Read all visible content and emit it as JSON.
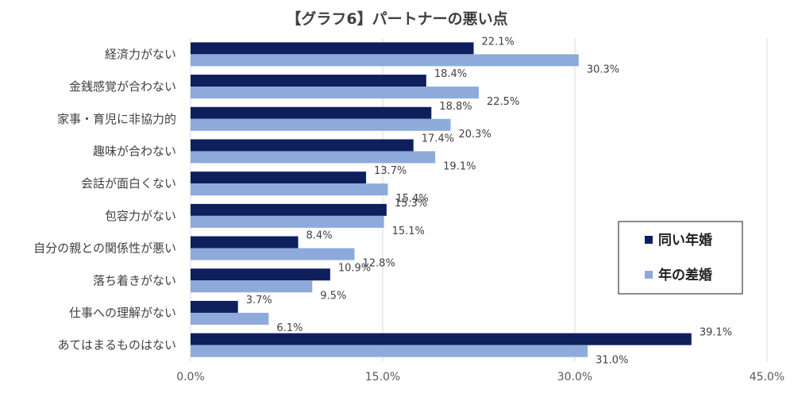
{
  "chart_data": {
    "type": "bar",
    "orientation": "horizontal",
    "title": "【グラフ6】パートナーの悪い点",
    "categories": [
      "経済力がない",
      "金銭感覚が合わない",
      "家事・育児に非協力的",
      "趣味が合わない",
      "会話が面白くない",
      "包容力がない",
      "自分の親との関係性が悪い",
      "落ち着きがない",
      "仕事への理解がない",
      "あてはまるものはない"
    ],
    "series": [
      {
        "name": "同い年婚",
        "color": "#0f1f5c",
        "values": [
          22.1,
          18.4,
          18.8,
          17.4,
          13.7,
          15.3,
          8.4,
          10.9,
          3.7,
          39.1
        ]
      },
      {
        "name": "年の差婚",
        "color": "#8eaadb",
        "values": [
          30.3,
          22.5,
          20.3,
          19.1,
          15.4,
          15.1,
          12.8,
          9.5,
          6.1,
          31.0
        ]
      }
    ],
    "xlim": [
      0,
      45
    ],
    "xticks": [
      0,
      15,
      30,
      45
    ],
    "tick_format": "percent_1dp",
    "grid": true,
    "legend": "right"
  }
}
